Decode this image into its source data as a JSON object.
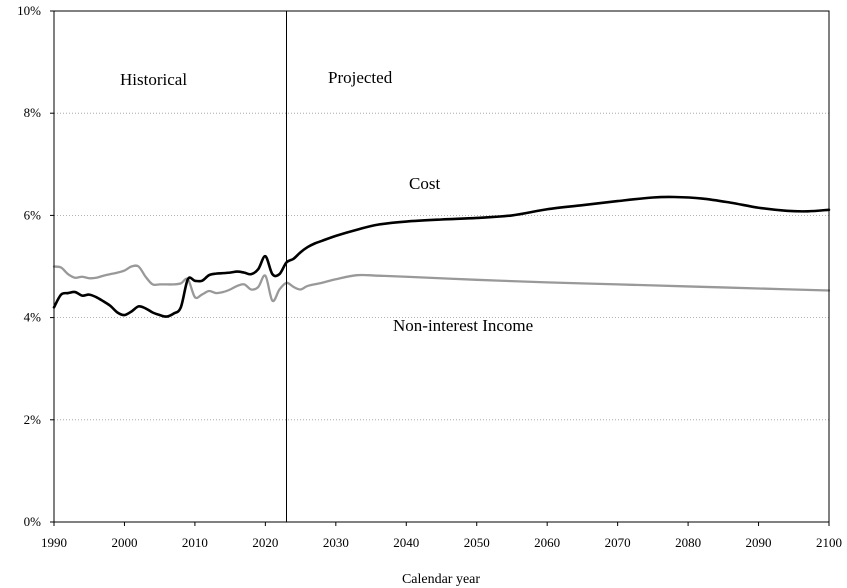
{
  "chart_data": {
    "type": "line",
    "title": "",
    "xlabel": "Calendar year",
    "ylabel": "",
    "xlim": [
      1990,
      2100
    ],
    "ylim": [
      0,
      10
    ],
    "x_ticks": [
      1990,
      2000,
      2010,
      2020,
      2030,
      2040,
      2050,
      2060,
      2070,
      2080,
      2090,
      2100
    ],
    "y_ticks": [
      0,
      2,
      4,
      6,
      8,
      10
    ],
    "y_tick_labels": [
      "0%",
      "2%",
      "4%",
      "6%",
      "8%",
      "10%"
    ],
    "grid": "dotted horizontal",
    "divider_year": 2023,
    "annotations": {
      "historical": "Historical",
      "projected": "Projected",
      "cost": "Cost",
      "income": "Non-interest Income"
    },
    "series": [
      {
        "name": "Cost",
        "color": "#000000",
        "points": [
          [
            1990,
            4.2
          ],
          [
            1991,
            4.45
          ],
          [
            1992,
            4.48
          ],
          [
            1993,
            4.5
          ],
          [
            1994,
            4.43
          ],
          [
            1995,
            4.45
          ],
          [
            1996,
            4.4
          ],
          [
            1997,
            4.32
          ],
          [
            1998,
            4.23
          ],
          [
            1999,
            4.1
          ],
          [
            2000,
            4.05
          ],
          [
            2001,
            4.12
          ],
          [
            2002,
            4.22
          ],
          [
            2003,
            4.18
          ],
          [
            2004,
            4.1
          ],
          [
            2005,
            4.05
          ],
          [
            2006,
            4.02
          ],
          [
            2007,
            4.08
          ],
          [
            2008,
            4.2
          ],
          [
            2009,
            4.75
          ],
          [
            2010,
            4.72
          ],
          [
            2011,
            4.72
          ],
          [
            2012,
            4.83
          ],
          [
            2013,
            4.86
          ],
          [
            2014,
            4.87
          ],
          [
            2015,
            4.88
          ],
          [
            2016,
            4.9
          ],
          [
            2017,
            4.88
          ],
          [
            2018,
            4.85
          ],
          [
            2019,
            4.95
          ],
          [
            2020,
            5.2
          ],
          [
            2021,
            4.85
          ],
          [
            2022,
            4.85
          ],
          [
            2023,
            5.08
          ],
          [
            2024,
            5.15
          ],
          [
            2025,
            5.28
          ],
          [
            2026,
            5.38
          ],
          [
            2027,
            5.45
          ],
          [
            2028,
            5.5
          ],
          [
            2030,
            5.6
          ],
          [
            2033,
            5.72
          ],
          [
            2036,
            5.82
          ],
          [
            2040,
            5.88
          ],
          [
            2045,
            5.92
          ],
          [
            2050,
            5.95
          ],
          [
            2055,
            6.0
          ],
          [
            2060,
            6.12
          ],
          [
            2065,
            6.2
          ],
          [
            2070,
            6.28
          ],
          [
            2075,
            6.35
          ],
          [
            2078,
            6.36
          ],
          [
            2082,
            6.33
          ],
          [
            2086,
            6.25
          ],
          [
            2090,
            6.15
          ],
          [
            2094,
            6.09
          ],
          [
            2097,
            6.08
          ],
          [
            2100,
            6.11
          ]
        ]
      },
      {
        "name": "Non-interest Income",
        "color": "#999999",
        "points": [
          [
            1990,
            5.0
          ],
          [
            1991,
            4.98
          ],
          [
            1992,
            4.85
          ],
          [
            1993,
            4.78
          ],
          [
            1994,
            4.8
          ],
          [
            1995,
            4.77
          ],
          [
            1996,
            4.78
          ],
          [
            1997,
            4.82
          ],
          [
            1998,
            4.85
          ],
          [
            1999,
            4.88
          ],
          [
            2000,
            4.92
          ],
          [
            2001,
            5.0
          ],
          [
            2002,
            5.0
          ],
          [
            2003,
            4.8
          ],
          [
            2004,
            4.65
          ],
          [
            2005,
            4.65
          ],
          [
            2006,
            4.65
          ],
          [
            2007,
            4.65
          ],
          [
            2008,
            4.67
          ],
          [
            2009,
            4.75
          ],
          [
            2010,
            4.4
          ],
          [
            2011,
            4.45
          ],
          [
            2012,
            4.52
          ],
          [
            2013,
            4.48
          ],
          [
            2014,
            4.5
          ],
          [
            2015,
            4.55
          ],
          [
            2016,
            4.62
          ],
          [
            2017,
            4.65
          ],
          [
            2018,
            4.55
          ],
          [
            2019,
            4.6
          ],
          [
            2020,
            4.82
          ],
          [
            2021,
            4.33
          ],
          [
            2022,
            4.55
          ],
          [
            2023,
            4.68
          ],
          [
            2024,
            4.6
          ],
          [
            2025,
            4.55
          ],
          [
            2026,
            4.62
          ],
          [
            2028,
            4.68
          ],
          [
            2030,
            4.75
          ],
          [
            2033,
            4.83
          ],
          [
            2036,
            4.82
          ],
          [
            2040,
            4.8
          ],
          [
            2050,
            4.74
          ],
          [
            2060,
            4.69
          ],
          [
            2070,
            4.65
          ],
          [
            2080,
            4.61
          ],
          [
            2090,
            4.57
          ],
          [
            2100,
            4.53
          ]
        ]
      }
    ]
  }
}
